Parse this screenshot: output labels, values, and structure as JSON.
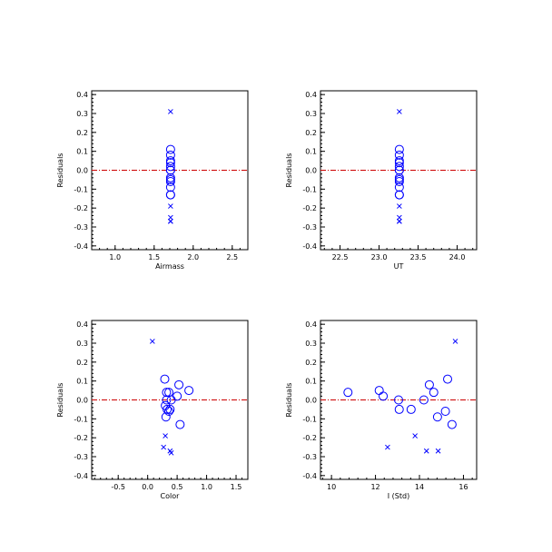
{
  "colors": {
    "axis": "#000000",
    "points": "#0000ff",
    "zero_line": "#cc0000"
  },
  "chart_data": [
    {
      "type": "scatter",
      "xlabel": "Airmass",
      "ylabel": "Residuals",
      "xlim": [
        0.7,
        2.7
      ],
      "ylim": [
        -0.42,
        0.42
      ],
      "xticks": [
        1.0,
        1.5,
        2.0,
        2.5
      ],
      "xtick_labels": [
        "1.0",
        "1.5",
        "2.0",
        "2.5"
      ],
      "yticks": [
        -0.4,
        -0.3,
        -0.2,
        -0.1,
        0.0,
        0.1,
        0.2,
        0.3,
        0.4
      ],
      "ytick_labels": [
        "-0.4",
        "-0.3",
        "-0.2",
        "-0.1",
        "0.0",
        "0.1",
        "0.2",
        "0.3",
        "0.4"
      ],
      "reference_line_y": 0,
      "series": [
        {
          "marker": "circle",
          "x": [
            1.71,
            1.71,
            1.71,
            1.71,
            1.71,
            1.71,
            1.71,
            1.71,
            1.71,
            1.71,
            1.71,
            1.71,
            1.71
          ],
          "y": [
            0.11,
            0.08,
            0.05,
            0.04,
            0.02,
            0.0,
            0.0,
            -0.04,
            -0.05,
            -0.06,
            -0.09,
            -0.13,
            -0.13
          ]
        },
        {
          "marker": "x",
          "x": [
            1.71,
            1.71,
            1.71,
            1.71,
            1.71
          ],
          "y": [
            0.31,
            -0.19,
            -0.25,
            -0.27,
            -0.27
          ]
        }
      ]
    },
    {
      "type": "scatter",
      "xlabel": "UT",
      "ylabel": "Residuals",
      "xlim": [
        22.25,
        24.25
      ],
      "ylim": [
        -0.42,
        0.42
      ],
      "xticks": [
        22.5,
        23.0,
        23.5,
        24.0
      ],
      "xtick_labels": [
        "22.5",
        "23.0",
        "23.5",
        "24.0"
      ],
      "yticks": [
        -0.4,
        -0.3,
        -0.2,
        -0.1,
        0.0,
        0.1,
        0.2,
        0.3,
        0.4
      ],
      "ytick_labels": [
        "-0.4",
        "-0.3",
        "-0.2",
        "-0.1",
        "0.0",
        "0.1",
        "0.2",
        "0.3",
        "0.4"
      ],
      "reference_line_y": 0,
      "series": [
        {
          "marker": "circle",
          "x": [
            23.26,
            23.26,
            23.26,
            23.26,
            23.26,
            23.26,
            23.26,
            23.26,
            23.26,
            23.26,
            23.26,
            23.26,
            23.26
          ],
          "y": [
            0.11,
            0.08,
            0.05,
            0.04,
            0.02,
            0.0,
            0.0,
            -0.04,
            -0.05,
            -0.06,
            -0.09,
            -0.13,
            -0.13
          ]
        },
        {
          "marker": "x",
          "x": [
            23.26,
            23.26,
            23.26,
            23.26,
            23.26
          ],
          "y": [
            0.31,
            -0.19,
            -0.25,
            -0.27,
            -0.27
          ]
        }
      ]
    },
    {
      "type": "scatter",
      "xlabel": "Color",
      "ylabel": "Residuals",
      "xlim": [
        -0.95,
        1.7
      ],
      "ylim": [
        -0.42,
        0.42
      ],
      "xticks": [
        -0.5,
        0.0,
        0.5,
        1.0,
        1.5
      ],
      "xtick_labels": [
        "-0.5",
        "0.0",
        "0.5",
        "1.0",
        "1.5"
      ],
      "yticks": [
        -0.4,
        -0.3,
        -0.2,
        -0.1,
        0.0,
        0.1,
        0.2,
        0.3,
        0.4
      ],
      "ytick_labels": [
        "-0.4",
        "-0.3",
        "-0.2",
        "-0.1",
        "0.0",
        "0.1",
        "0.2",
        "0.3",
        "0.4"
      ],
      "reference_line_y": 0,
      "series": [
        {
          "marker": "circle",
          "x": [
            0.29,
            0.36,
            0.32,
            0.53,
            0.7,
            0.5,
            0.32,
            0.4,
            0.3,
            0.33,
            0.38,
            0.36,
            0.31,
            0.55
          ],
          "y": [
            0.11,
            0.04,
            0.04,
            0.08,
            0.05,
            0.02,
            0.0,
            0.0,
            -0.03,
            -0.05,
            -0.05,
            -0.06,
            -0.09,
            -0.13
          ]
        },
        {
          "marker": "x",
          "x": [
            0.08,
            0.3,
            0.27,
            0.38,
            0.4
          ],
          "y": [
            0.31,
            -0.19,
            -0.25,
            -0.27,
            -0.28
          ]
        }
      ]
    },
    {
      "type": "scatter",
      "xlabel": "I (Std)",
      "ylabel": "Residuals",
      "xlim": [
        9.5,
        16.6
      ],
      "ylim": [
        -0.42,
        0.42
      ],
      "xticks": [
        10,
        12,
        14,
        16
      ],
      "xtick_labels": [
        "10",
        "12",
        "14",
        "16"
      ],
      "yticks": [
        -0.4,
        -0.3,
        -0.2,
        -0.1,
        0.0,
        0.1,
        0.2,
        0.3,
        0.4
      ],
      "ytick_labels": [
        "-0.4",
        "-0.3",
        "-0.2",
        "-0.1",
        "0.0",
        "0.1",
        "0.2",
        "0.3",
        "0.4"
      ],
      "reference_line_y": 0,
      "series": [
        {
          "marker": "circle",
          "x": [
            10.75,
            12.17,
            12.35,
            13.05,
            13.08,
            13.62,
            14.2,
            14.45,
            14.65,
            14.82,
            15.18,
            15.28,
            15.48
          ],
          "y": [
            0.04,
            0.05,
            0.02,
            0.0,
            -0.05,
            -0.05,
            0.0,
            0.08,
            0.04,
            -0.09,
            -0.06,
            0.11,
            -0.13
          ]
        },
        {
          "marker": "x",
          "x": [
            12.55,
            13.8,
            14.32,
            14.85,
            15.63
          ],
          "y": [
            -0.25,
            -0.19,
            -0.27,
            -0.27,
            0.31
          ]
        }
      ]
    }
  ]
}
